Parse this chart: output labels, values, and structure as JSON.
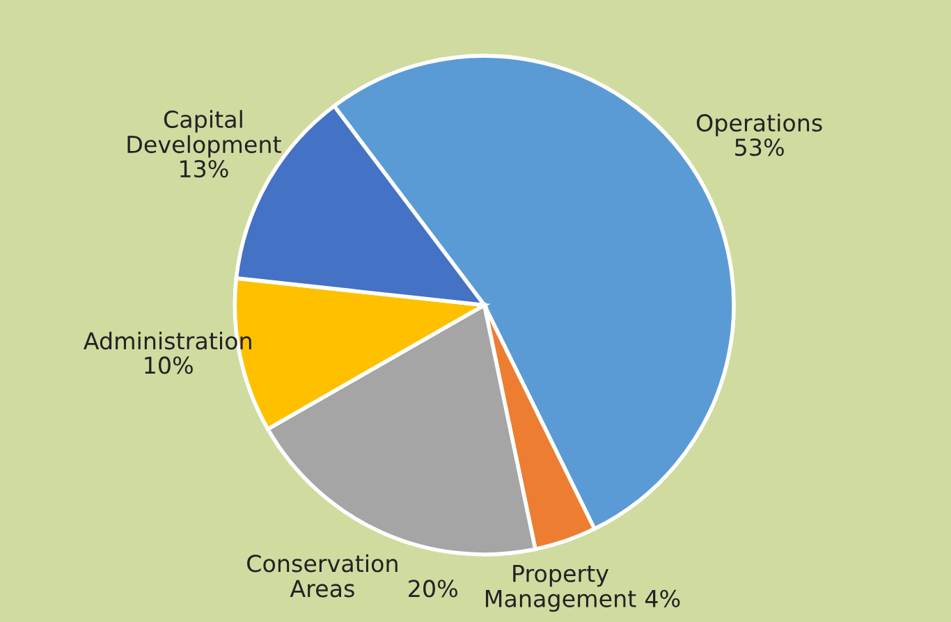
{
  "chart_data": {
    "type": "pie",
    "categories": [
      "Operations",
      "Property\nManagement",
      "Conservation\nAreas",
      "Administration",
      "Capital\nDevelopment"
    ],
    "values": [
      53,
      4,
      20,
      10,
      13
    ],
    "colors": [
      "#5b9bd5",
      "#ed7d31",
      "#a5a5a5",
      "#ffc000",
      "#4472c4"
    ],
    "value_labels": [
      "53%",
      "4%",
      "20%",
      "10%",
      "13%"
    ],
    "legend": false
  }
}
